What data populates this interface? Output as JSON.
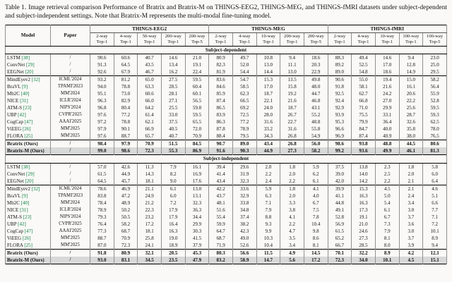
{
  "caption": {
    "label": "Table 1.",
    "text": "Image retrieval comparison Performance of Bratrix and Bratrix-M on THINGS-EEG2, THINGS-MEG, and THINGS-fMRI datasets under subject-dependent and subject-independent settings. Note that Bratrix-M represents the multi-modal fine-tuning model."
  },
  "table": {
    "col_headers": {
      "model": "Model",
      "paper": "Paper",
      "groups": [
        {
          "name": "THINGS-EEG2",
          "cols": [
            [
              "2-way",
              "Top-1"
            ],
            [
              "4-way",
              "Top-1"
            ],
            [
              "50-way",
              "Top-1"
            ],
            [
              "200-way",
              "Top-1"
            ],
            [
              "200-way",
              "Top-5"
            ]
          ]
        },
        {
          "name": "THINGS-MEG",
          "cols": [
            [
              "2-way",
              "Top-1"
            ],
            [
              "4-way",
              "Top-1"
            ],
            [
              "10-way",
              "Top-1"
            ],
            [
              "200-way",
              "Top-1"
            ],
            [
              "200-way",
              "Top-5"
            ]
          ]
        },
        {
          "name": "THINGS-fMRI",
          "cols": [
            [
              "2-way",
              "Top-1"
            ],
            [
              "4-way",
              "Top-1"
            ],
            [
              "10-way",
              "Top-1"
            ],
            [
              "100-way",
              "Top-1"
            ],
            [
              "100-way",
              "Top-5"
            ]
          ]
        }
      ]
    },
    "sections": [
      {
        "title": "Subject-dependent",
        "rows": [
          {
            "model": "LSTM",
            "cite": "[38]",
            "paper": "/",
            "bold": false,
            "highlight": false,
            "rule_above": false,
            "values": [
              "90.6",
              "60.6",
              "40.7",
              "14.6",
              "21.0",
              "80.9",
              "49.7",
              "10.8",
              "9.4",
              "18.6",
              "88.3",
              "49.4",
              "14.6",
              "9.4",
              "23.0"
            ]
          },
          {
            "model": "ConvNet",
            "cite": "[29]",
            "paper": "/",
            "bold": false,
            "highlight": false,
            "rule_above": false,
            "values": [
              "91.3",
              "64.5",
              "43.5",
              "13.4",
              "19.1",
              "82.3",
              "52.0",
              "13.0",
              "11.1",
              "20.3",
              "89.2",
              "52.5",
              "17.0",
              "12.8",
              "25.0"
            ]
          },
          {
            "model": "EEGNet",
            "cite": "[20]",
            "paper": "/",
            "bold": false,
            "highlight": false,
            "rule_above": false,
            "values": [
              "92.6",
              "67.9",
              "46.7",
              "16.2",
              "22.4",
              "81.9",
              "54.4",
              "14.4",
              "13.0",
              "22.9",
              "89.0",
              "54.8",
              "18.6",
              "14.9",
              "29.5"
            ]
          },
          {
            "model": "MindEyev2",
            "cite": "[32]",
            "paper": "ICML'2024",
            "bold": false,
            "highlight": false,
            "rule_above": true,
            "values": [
              "93.2",
              "81.2",
              "65.0",
              "27.5",
              "59.5",
              "83.6",
              "54.7",
              "15.3",
              "13.5",
              "49.8",
              "90.6",
              "55.0",
              "19.4",
              "15.0",
              "58.2"
            ]
          },
          {
            "model": "BraVL",
            "cite": "[9]",
            "paper": "TPAMI'2023",
            "bold": false,
            "highlight": false,
            "rule_above": false,
            "values": [
              "94.0",
              "78.8",
              "63.3",
              "28.5",
              "60.4",
              "84.6",
              "58.5",
              "17.0",
              "15.8",
              "48.0",
              "91.8",
              "58.1",
              "21.6",
              "16.1",
              "56.4"
            ]
          },
          {
            "model": "Mb2C",
            "cite": "[40]",
            "paper": "MM'2024",
            "bold": false,
            "highlight": false,
            "rule_above": false,
            "values": [
              "95.1",
              "73.0",
              "60.6",
              "28.1",
              "60.1",
              "85.9",
              "62.3",
              "18.7",
              "19.2",
              "44.7",
              "92.5",
              "62.7",
              "24.2",
              "20.6",
              "55.9"
            ]
          },
          {
            "model": "NICE",
            "cite": "[31]",
            "paper": "ICLR'2024",
            "bold": false,
            "highlight": false,
            "rule_above": false,
            "values": [
              "96.3",
              "82.9",
              "66.0",
              "27.1",
              "56.5",
              "87.4",
              "66.5",
              "22.1",
              "21.6",
              "46.8",
              "92.4",
              "66.8",
              "27.0",
              "22.2",
              "52.8"
            ]
          },
          {
            "model": "ATM-S",
            "cite": "[23]",
            "paper": "NIPS'2024",
            "bold": false,
            "highlight": false,
            "rule_above": false,
            "values": [
              "96.8",
              "80.4",
              "64.2",
              "25.5",
              "59.8",
              "86.5",
              "69.2",
              "24.0",
              "18.7",
              "43.1",
              "92.9",
              "71.0",
              "29.9",
              "25.6",
              "59.5"
            ]
          },
          {
            "model": "UBP",
            "cite": "[42]",
            "paper": "CVPR'2025",
            "bold": false,
            "highlight": false,
            "rule_above": false,
            "values": [
              "97.6",
              "77.2",
              "61.4",
              "33.0",
              "59.5",
              "83.9",
              "72.5",
              "28.0",
              "26.7",
              "55.2",
              "93.9",
              "75.5",
              "33.1",
              "28.7",
              "59.3"
            ]
          },
          {
            "model": "CogCap",
            "cite": "[47]",
            "paper": "AAAI'2025",
            "bold": false,
            "highlight": false,
            "rule_above": false,
            "values": [
              "97.2",
              "78.8",
              "62.1",
              "37.5",
              "65.5",
              "86.3",
              "77.2",
              "31.6",
              "22.7",
              "48.8",
              "95.3",
              "79.9",
              "36.4",
              "32.6",
              "62.5"
            ]
          },
          {
            "model": "ViEEG",
            "cite": "[26]",
            "paper": "MM'2025",
            "bold": false,
            "highlight": false,
            "rule_above": false,
            "values": [
              "97.9",
              "90.1",
              "66.9",
              "40.5",
              "72.0",
              "87.8",
              "78.9",
              "33.2",
              "31.6",
              "55.8",
              "96.6",
              "84.7",
              "40.0",
              "35.8",
              "78.0"
            ]
          },
          {
            "model": "FLORA",
            "cite": "[25]",
            "paper": "MM'2025",
            "bold": false,
            "highlight": false,
            "rule_above": false,
            "values": [
              "97.6",
              "88.7",
              "65.7",
              "40.7",
              "70.9",
              "88.4",
              "79.5",
              "34.3",
              "26.8",
              "54.9",
              "96.9",
              "87.4",
              "40.9",
              "38.0",
              "76.5"
            ]
          },
          {
            "model": "Bratrix (Ours)",
            "cite": "",
            "paper": "/",
            "bold": true,
            "highlight": false,
            "rule_above": true,
            "values": [
              "98.4",
              "97.9",
              "70.9",
              "51.5",
              "84.5",
              "90.7",
              "89.0",
              "43.4",
              "26.8",
              "56.0",
              "98.6",
              "93.8",
              "48.8",
              "44.5",
              "80.6"
            ]
          },
          {
            "model": "Bratrix-M (Ours)",
            "cite": "",
            "paper": "/",
            "bold": true,
            "highlight": true,
            "rule_above": false,
            "values": [
              "99.0",
              "98.6",
              "72.3",
              "55.3",
              "86.9",
              "91.6",
              "90.3",
              "44.9",
              "27.3",
              "58.2",
              "99.2",
              "93.6",
              "49.9",
              "46.1",
              "81.3"
            ]
          }
        ]
      },
      {
        "title": "Subject-independent",
        "rows": [
          {
            "model": "LSTM",
            "cite": "[38]",
            "paper": "/",
            "bold": false,
            "highlight": false,
            "rule_above": false,
            "values": [
              "57.0",
              "42.6",
              "11.3",
              "7.9",
              "16.1",
              "39.4",
              "29.6",
              "2.0",
              "1.8",
              "5.9",
              "37.5",
              "13.8",
              "2.3",
              "1.8",
              "5.8"
            ]
          },
          {
            "model": "ConvNet",
            "cite": "[29]",
            "paper": "/",
            "bold": false,
            "highlight": false,
            "rule_above": false,
            "values": [
              "61.5",
              "44.9",
              "14.3",
              "8.2",
              "16.9",
              "41.4",
              "31.9",
              "2.2",
              "2.0",
              "6.2",
              "39.0",
              "14.0",
              "2.5",
              "2.0",
              "6.0"
            ]
          },
          {
            "model": "EEGNet",
            "cite": "[20]",
            "paper": "/",
            "bold": false,
            "highlight": false,
            "rule_above": false,
            "values": [
              "64.5",
              "45.7",
              "18.1",
              "9.0",
              "17.6",
              "43.4",
              "32.3",
              "2.4",
              "2.2",
              "6.1",
              "42.0",
              "14.2",
              "2.2",
              "2.1",
              "6.4"
            ]
          },
          {
            "model": "MindEyev2",
            "cite": "[32]",
            "paper": "ICML'2024",
            "bold": false,
            "highlight": false,
            "rule_above": true,
            "values": [
              "78.6",
              "46.9",
              "21.1",
              "6.1",
              "13.0",
              "42.2",
              "33.6",
              "5.9",
              "1.8",
              "4.1",
              "39.9",
              "15.3",
              "4.5",
              "2.1",
              "4.6"
            ]
          },
          {
            "model": "BraVL",
            "cite": "[9]",
            "paper": "TPAMI'2023",
            "bold": false,
            "highlight": false,
            "rule_above": false,
            "values": [
              "83.8",
              "47.2",
              "24.9",
              "6.0",
              "13.1",
              "43.7",
              "32.9",
              "6.3",
              "2.0",
              "4.0",
              "41.1",
              "16.3",
              "5.0",
              "2.4",
              "5.1"
            ]
          },
          {
            "model": "Mb2C",
            "cite": "[40]",
            "paper": "MM'2024",
            "bold": false,
            "highlight": false,
            "rule_above": false,
            "values": [
              "78.4",
              "48.9",
              "21.2",
              "7.2",
              "32.3",
              "48.1",
              "33.8",
              "7.1",
              "3.3",
              "6.7",
              "44.8",
              "16.3",
              "5.4",
              "3.4",
              "6.6"
            ]
          },
          {
            "model": "NICE",
            "cite": "[31]",
            "paper": "ICLR'2024",
            "bold": false,
            "highlight": false,
            "rule_above": false,
            "values": [
              "78.9",
              "50.2",
              "22.3",
              "17.9",
              "36.3",
              "51.6",
              "34.8",
              "7.9",
              "3.8",
              "7.5",
              "49.1",
              "17.3",
              "6.1",
              "3.0",
              "7.7"
            ]
          },
          {
            "model": "ATM-S",
            "cite": "[23]",
            "paper": "NIPS'2024",
            "bold": false,
            "highlight": false,
            "rule_above": false,
            "values": [
              "79.3",
              "50.5",
              "23.2",
              "17.9",
              "34.4",
              "55.4",
              "37.4",
              "8.8",
              "4.1",
              "7.8",
              "52.8",
              "19.1",
              "6.7",
              "3.7",
              "7.1"
            ]
          },
          {
            "model": "UBP",
            "cite": "[42]",
            "paper": "CVPR'2025",
            "bold": false,
            "highlight": false,
            "rule_above": false,
            "values": [
              "76.4",
              "58.2",
              "17.2",
              "16.4",
              "29.9",
              "59.9",
              "38.2",
              "9.3",
              "2.2",
              "10.4",
              "56.9",
              "21.0",
              "7.3",
              "3.6",
              "7.2"
            ]
          },
          {
            "model": "CogCap",
            "cite": "[47]",
            "paper": "AAAI'2025",
            "bold": false,
            "highlight": false,
            "rule_above": false,
            "values": [
              "77.3",
              "68.7",
              "18.1",
              "16.3",
              "30.3",
              "64.7",
              "42.3",
              "9.9",
              "4.7",
              "9.8",
              "61.5",
              "24.6",
              "7.9",
              "3.0",
              "10.1"
            ]
          },
          {
            "model": "ViEEG",
            "cite": "[26]",
            "paper": "MM'2025",
            "bold": false,
            "highlight": false,
            "rule_above": false,
            "values": [
              "88.7",
              "70.9",
              "25.8",
              "19.0",
              "41.5",
              "68.7",
              "49.0",
              "10.3",
              "3.5",
              "8.6",
              "65.2",
              "27.3",
              "8.1",
              "3.7",
              "8.9"
            ]
          },
          {
            "model": "FLORA",
            "cite": "[25]",
            "paper": "MM'2025",
            "bold": false,
            "highlight": false,
            "rule_above": false,
            "values": [
              "87.0",
              "72.3",
              "24.1",
              "18.9",
              "37.9",
              "71.9",
              "52.6",
              "10.4",
              "3.4",
              "8.1",
              "66.7",
              "28.5",
              "8.0",
              "3.9",
              "9.4"
            ]
          },
          {
            "model": "Bratrix (Ours)",
            "cite": "",
            "paper": "/",
            "bold": true,
            "highlight": false,
            "rule_above": true,
            "values": [
              "91.8",
              "80.9",
              "32.1",
              "20.5",
              "45.3",
              "80.3",
              "56.6",
              "11.5",
              "4.9",
              "14.5",
              "70.1",
              "32.2",
              "8.9",
              "4.2",
              "12.1"
            ]
          },
          {
            "model": "Bratrix-M (Ours)",
            "cite": "",
            "paper": "/",
            "bold": true,
            "highlight": true,
            "rule_above": false,
            "values": [
              "93.0",
              "83.1",
              "34.5",
              "23.5",
              "47.9",
              "83.2",
              "58.9",
              "14.7",
              "5.6",
              "17.2",
              "72.3",
              "34.0",
              "10.1",
              "4.5",
              "15.1"
            ]
          }
        ]
      }
    ]
  }
}
